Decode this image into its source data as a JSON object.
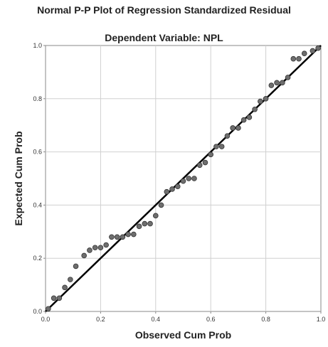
{
  "chart_data": {
    "type": "scatter",
    "title": "Normal P-P Plot of Regression Standardized Residual",
    "subtitle": "Dependent Variable: NPL",
    "xlabel": "Observed Cum Prob",
    "ylabel": "Expected Cum Prob",
    "xlim": [
      0,
      1
    ],
    "ylim": [
      0,
      1
    ],
    "xticks": [
      "0.0",
      "0.2",
      "0.4",
      "0.6",
      "0.8",
      "1.0"
    ],
    "yticks": [
      "0.0",
      "0.2",
      "0.4",
      "0.6",
      "0.8",
      "1.0"
    ],
    "grid": true,
    "reference_line": [
      [
        0,
        0
      ],
      [
        1,
        1
      ]
    ],
    "colors": {
      "point": "#6e6e6e",
      "point_edge": "#333333",
      "line": "#000000",
      "grid": "#d0d0d0"
    },
    "points": [
      [
        0.01,
        0.01
      ],
      [
        0.03,
        0.05
      ],
      [
        0.05,
        0.05
      ],
      [
        0.07,
        0.09
      ],
      [
        0.09,
        0.12
      ],
      [
        0.11,
        0.17
      ],
      [
        0.14,
        0.21
      ],
      [
        0.16,
        0.23
      ],
      [
        0.18,
        0.24
      ],
      [
        0.2,
        0.24
      ],
      [
        0.22,
        0.25
      ],
      [
        0.24,
        0.28
      ],
      [
        0.26,
        0.28
      ],
      [
        0.28,
        0.28
      ],
      [
        0.3,
        0.29
      ],
      [
        0.32,
        0.29
      ],
      [
        0.34,
        0.32
      ],
      [
        0.36,
        0.33
      ],
      [
        0.38,
        0.33
      ],
      [
        0.4,
        0.36
      ],
      [
        0.42,
        0.4
      ],
      [
        0.44,
        0.45
      ],
      [
        0.46,
        0.46
      ],
      [
        0.48,
        0.47
      ],
      [
        0.5,
        0.49
      ],
      [
        0.52,
        0.5
      ],
      [
        0.54,
        0.5
      ],
      [
        0.56,
        0.55
      ],
      [
        0.58,
        0.56
      ],
      [
        0.6,
        0.59
      ],
      [
        0.62,
        0.62
      ],
      [
        0.64,
        0.62
      ],
      [
        0.66,
        0.66
      ],
      [
        0.68,
        0.69
      ],
      [
        0.7,
        0.69
      ],
      [
        0.72,
        0.72
      ],
      [
        0.74,
        0.73
      ],
      [
        0.76,
        0.76
      ],
      [
        0.78,
        0.79
      ],
      [
        0.8,
        0.8
      ],
      [
        0.82,
        0.85
      ],
      [
        0.84,
        0.86
      ],
      [
        0.86,
        0.86
      ],
      [
        0.88,
        0.88
      ],
      [
        0.9,
        0.95
      ],
      [
        0.92,
        0.95
      ],
      [
        0.94,
        0.97
      ],
      [
        0.97,
        0.98
      ],
      [
        0.99,
        0.99
      ]
    ]
  }
}
